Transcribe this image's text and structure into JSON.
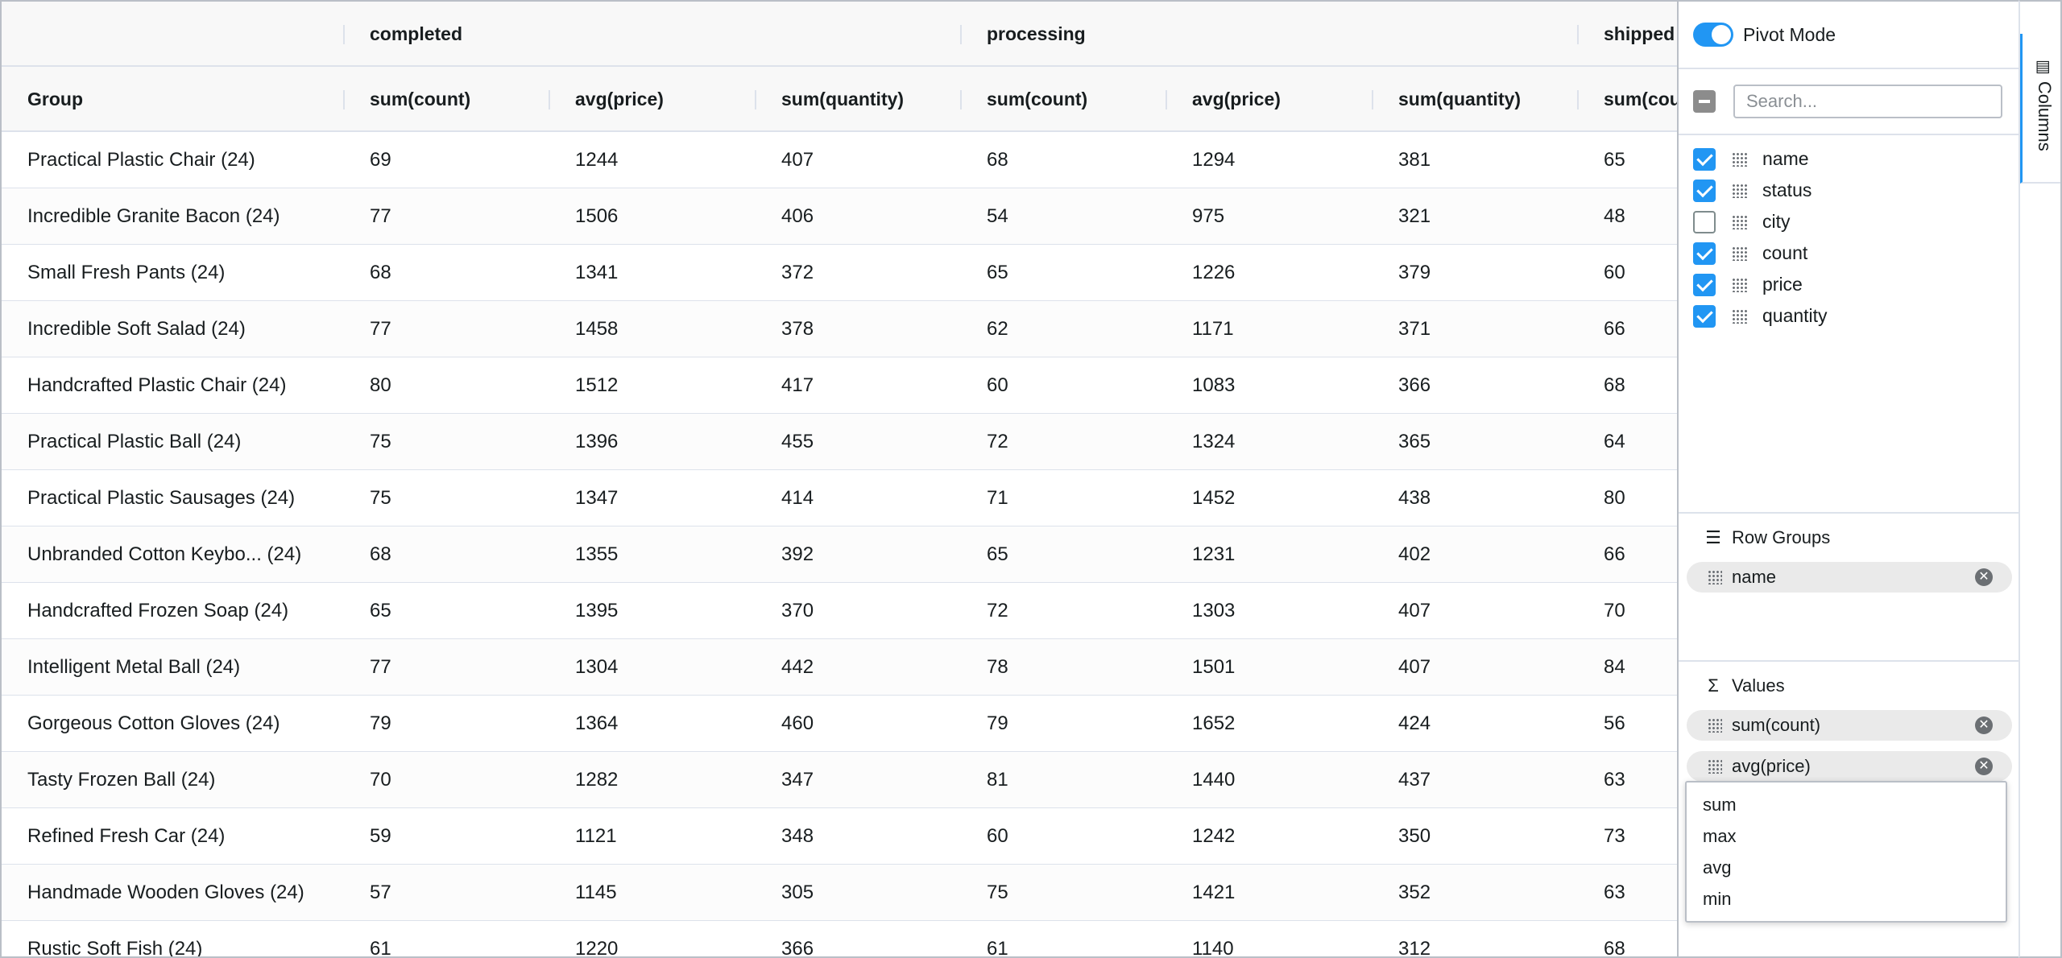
{
  "grid": {
    "group_headers": [
      "",
      "completed",
      "processing",
      "shipped"
    ],
    "column_headers": [
      "Group",
      "sum(count)",
      "avg(price)",
      "sum(quantity)",
      "sum(count)",
      "avg(price)",
      "sum(quantity)",
      "sum(cou"
    ],
    "rows": [
      {
        "group": "Practical Plastic Chair (24)",
        "values": [
          "69",
          "1244",
          "407",
          "68",
          "1294",
          "381",
          "65"
        ]
      },
      {
        "group": "Incredible Granite Bacon (24)",
        "values": [
          "77",
          "1506",
          "406",
          "54",
          "975",
          "321",
          "48"
        ]
      },
      {
        "group": "Small Fresh Pants (24)",
        "values": [
          "68",
          "1341",
          "372",
          "65",
          "1226",
          "379",
          "60"
        ]
      },
      {
        "group": "Incredible Soft Salad (24)",
        "values": [
          "77",
          "1458",
          "378",
          "62",
          "1171",
          "371",
          "66"
        ]
      },
      {
        "group": "Handcrafted Plastic Chair (24)",
        "values": [
          "80",
          "1512",
          "417",
          "60",
          "1083",
          "366",
          "68"
        ]
      },
      {
        "group": "Practical Plastic Ball (24)",
        "values": [
          "75",
          "1396",
          "455",
          "72",
          "1324",
          "365",
          "64"
        ]
      },
      {
        "group": "Practical Plastic Sausages (24)",
        "values": [
          "75",
          "1347",
          "414",
          "71",
          "1452",
          "438",
          "80"
        ]
      },
      {
        "group": "Unbranded Cotton Keybo...  (24)",
        "values": [
          "68",
          "1355",
          "392",
          "65",
          "1231",
          "402",
          "66"
        ]
      },
      {
        "group": "Handcrafted Frozen Soap (24)",
        "values": [
          "65",
          "1395",
          "370",
          "72",
          "1303",
          "407",
          "70"
        ]
      },
      {
        "group": "Intelligent Metal Ball (24)",
        "values": [
          "77",
          "1304",
          "442",
          "78",
          "1501",
          "407",
          "84"
        ]
      },
      {
        "group": "Gorgeous Cotton Gloves (24)",
        "values": [
          "79",
          "1364",
          "460",
          "79",
          "1652",
          "424",
          "56"
        ]
      },
      {
        "group": "Tasty Frozen Ball (24)",
        "values": [
          "70",
          "1282",
          "347",
          "81",
          "1440",
          "437",
          "63"
        ]
      },
      {
        "group": "Refined Fresh Car (24)",
        "values": [
          "59",
          "1121",
          "348",
          "60",
          "1242",
          "350",
          "73"
        ]
      },
      {
        "group": "Handmade Wooden Gloves (24)",
        "values": [
          "57",
          "1145",
          "305",
          "75",
          "1421",
          "352",
          "63"
        ]
      },
      {
        "group": "Rustic Soft Fish (24)",
        "values": [
          "61",
          "1220",
          "366",
          "61",
          "1140",
          "312",
          "68"
        ]
      }
    ]
  },
  "panel": {
    "pivot_mode_label": "Pivot Mode",
    "pivot_mode_on": true,
    "search_placeholder": "Search...",
    "columns": [
      {
        "label": "name",
        "checked": true
      },
      {
        "label": "status",
        "checked": true
      },
      {
        "label": "city",
        "checked": false
      },
      {
        "label": "count",
        "checked": true
      },
      {
        "label": "price",
        "checked": true
      },
      {
        "label": "quantity",
        "checked": true
      }
    ],
    "row_groups": {
      "title": "Row Groups",
      "items": [
        "name"
      ]
    },
    "values": {
      "title": "Values",
      "items": [
        "sum(count)",
        "avg(price)"
      ]
    },
    "agg_menu": [
      "sum",
      "max",
      "avg",
      "min"
    ]
  },
  "side_bar": {
    "tab_label": "Columns"
  },
  "colors": {
    "accent": "#2196f3",
    "border": "#babfc7",
    "row_divider": "#dde2eb",
    "header_bg": "#f8f8f8"
  }
}
